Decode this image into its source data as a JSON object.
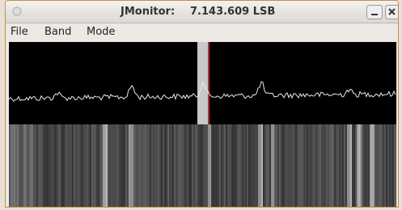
{
  "window": {
    "app": "JMonitor:",
    "frequency": "7.143.609 LSB"
  },
  "menu": [
    "File",
    "Band",
    "Mode"
  ]
}
